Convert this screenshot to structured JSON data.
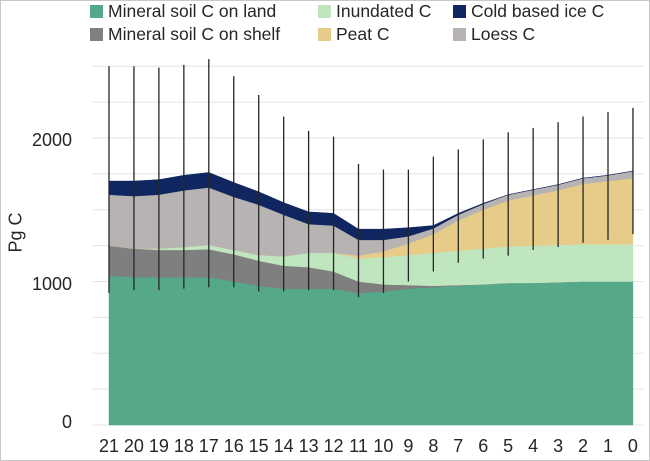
{
  "chart_data": {
    "type": "area",
    "stacked": true,
    "ylabel": "Pg C",
    "xlabel": "",
    "ylim": [
      0,
      2500
    ],
    "yticks": [
      0,
      1000,
      2000
    ],
    "ytick_labels": [
      "0",
      "1000",
      "2000"
    ],
    "x": [
      "21",
      "20",
      "19",
      "18",
      "17",
      "16",
      "15",
      "14",
      "13",
      "12",
      "11",
      "10",
      "9",
      "8",
      "7",
      "6",
      "5",
      "4",
      "3",
      "2",
      "1",
      "0"
    ],
    "grid": "horizontal",
    "legend": "top",
    "series": [
      {
        "name": "Mineral soil C on land",
        "color": "#55a888",
        "values": [
          1040,
          1030,
          1030,
          1030,
          1030,
          1000,
          970,
          950,
          950,
          950,
          920,
          930,
          950,
          960,
          970,
          980,
          990,
          990,
          995,
          1000,
          1000,
          1000
        ]
      },
      {
        "name": "Mineral soil C on shelf",
        "color": "#7f7f7f",
        "values": [
          210,
          200,
          190,
          190,
          195,
          190,
          175,
          160,
          150,
          120,
          80,
          50,
          25,
          10,
          5,
          0,
          0,
          0,
          0,
          0,
          0,
          0
        ]
      },
      {
        "name": "Inundated C",
        "color": "#bfe6bf",
        "values": [
          0,
          0,
          10,
          20,
          30,
          30,
          40,
          65,
          100,
          130,
          160,
          190,
          210,
          230,
          240,
          250,
          255,
          260,
          260,
          260,
          260,
          260
        ]
      },
      {
        "name": "Peat C",
        "color": "#e6cc88",
        "values": [
          0,
          0,
          0,
          0,
          0,
          0,
          0,
          0,
          0,
          0,
          20,
          40,
          80,
          130,
          210,
          270,
          320,
          350,
          380,
          420,
          440,
          460
        ]
      },
      {
        "name": "Loess C",
        "color": "#b8b3b3",
        "values": [
          355,
          365,
          375,
          395,
          400,
          370,
          350,
          290,
          200,
          190,
          110,
          80,
          50,
          40,
          40,
          40,
          40,
          40,
          40,
          40,
          40,
          50
        ]
      },
      {
        "name": "Cold based ice C",
        "color": "#0f2660",
        "values": [
          95,
          105,
          105,
          105,
          105,
          100,
          90,
          85,
          85,
          85,
          75,
          75,
          60,
          20,
          10,
          5,
          0,
          0,
          0,
          0,
          0,
          0
        ]
      }
    ],
    "error_bars": {
      "center": [
        1710,
        1710,
        1710,
        1730,
        1760,
        1700,
        1630,
        1550,
        1490,
        1470,
        1370,
        1370,
        1380,
        1390,
        1480,
        1545,
        1605,
        1640,
        1680,
        1720,
        1740,
        1770
      ],
      "low": [
        920,
        940,
        940,
        950,
        960,
        960,
        930,
        930,
        940,
        940,
        890,
        920,
        1000,
        1070,
        1130,
        1160,
        1180,
        1220,
        1240,
        1270,
        1290,
        1330
      ],
      "high": [
        2500,
        2500,
        2490,
        2510,
        2550,
        2430,
        2300,
        2150,
        2050,
        2010,
        1820,
        1780,
        1780,
        1870,
        1920,
        1990,
        2040,
        2070,
        2110,
        2150,
        2180,
        2210
      ],
      "color": "#262626"
    },
    "legend_order": [
      "Mineral soil C on land",
      "Inundated C",
      "Cold based ice C",
      "Mineral soil C on shelf",
      "Peat C",
      "Loess C"
    ]
  }
}
